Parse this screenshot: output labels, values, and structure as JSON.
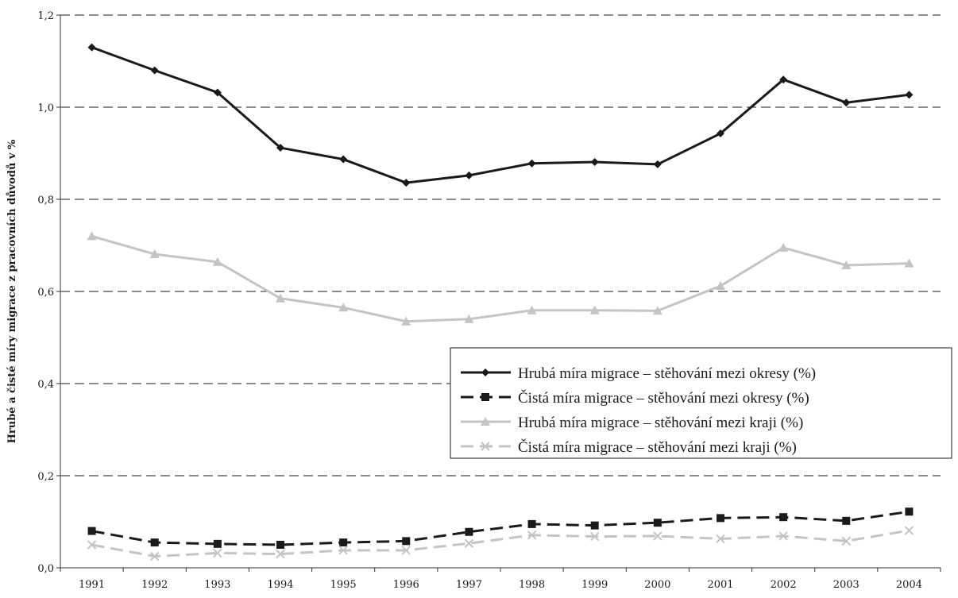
{
  "chart_data": {
    "type": "line",
    "title": "",
    "xlabel": "",
    "ylabel": "Hrubé a čisté míry migrace z pracovních důvodů v %",
    "categories": [
      "1991",
      "1992",
      "1993",
      "1994",
      "1995",
      "1996",
      "1997",
      "1998",
      "1999",
      "2000",
      "2001",
      "2002",
      "2003",
      "2004"
    ],
    "ylim": [
      0,
      1.2
    ],
    "yticks": [
      "0,0",
      "0,2",
      "0,4",
      "0,6",
      "0,8",
      "1,0",
      "1,2"
    ],
    "grid": "horizontal dashed",
    "legend_position": "center-right",
    "series": [
      {
        "name": "Hrubá míra migrace – stěhování mezi okresy (%)",
        "color": "#1a1a1a",
        "dash": "solid",
        "marker": "diamond",
        "values": [
          1.13,
          1.08,
          1.032,
          0.912,
          0.887,
          0.836,
          0.852,
          0.878,
          0.881,
          0.876,
          0.943,
          1.06,
          1.01,
          1.027
        ]
      },
      {
        "name": "Čistá míra migrace – stěhování mezi okresy (%)",
        "color": "#1a1a1a",
        "dash": "dashed",
        "marker": "square",
        "values": [
          0.08,
          0.055,
          0.052,
          0.05,
          0.055,
          0.058,
          0.078,
          0.095,
          0.092,
          0.098,
          0.108,
          0.11,
          0.102,
          0.122
        ]
      },
      {
        "name": "Hrubá míra migrace – stěhování mezi kraji (%)",
        "color": "#c4c4c4",
        "dash": "solid",
        "marker": "triangle",
        "values": [
          0.72,
          0.681,
          0.664,
          0.585,
          0.565,
          0.535,
          0.54,
          0.559,
          0.559,
          0.558,
          0.612,
          0.695,
          0.657,
          0.661
        ]
      },
      {
        "name": "Čistá míra migrace – stěhování mezi kraji (%)",
        "color": "#c4c4c4",
        "dash": "dashed",
        "marker": "x",
        "values": [
          0.05,
          0.025,
          0.032,
          0.03,
          0.038,
          0.038,
          0.053,
          0.071,
          0.068,
          0.069,
          0.063,
          0.069,
          0.058,
          0.081
        ]
      }
    ]
  }
}
